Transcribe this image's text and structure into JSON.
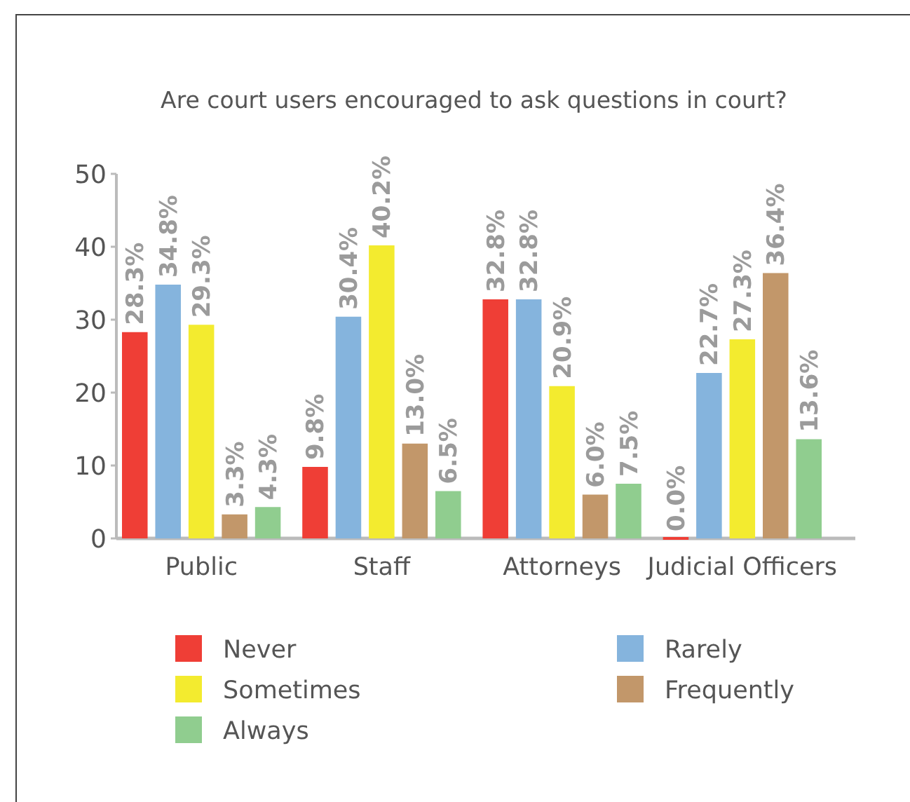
{
  "chart_data": {
    "type": "bar",
    "title": "Are court users encouraged to ask questions in court?",
    "categories": [
      "Public",
      "Staff",
      "Attorneys",
      "Judicial Officers"
    ],
    "series": [
      {
        "name": "Never",
        "color": "#ef3e36",
        "values": [
          28.3,
          9.8,
          32.8,
          0.0
        ],
        "value_labels": [
          "28.3%",
          "9.8%",
          "32.8%",
          "0.0%"
        ]
      },
      {
        "name": "Rarely",
        "color": "#85b4dd",
        "values": [
          34.8,
          30.4,
          32.8,
          22.7
        ],
        "value_labels": [
          "34.8%",
          "30.4%",
          "32.8%",
          "22.7%"
        ]
      },
      {
        "name": "Sometimes",
        "color": "#f3eb2f",
        "values": [
          29.3,
          40.2,
          20.9,
          27.3
        ],
        "value_labels": [
          "29.3%",
          "40.2%",
          "20.9%",
          "27.3%"
        ]
      },
      {
        "name": "Frequently",
        "color": "#c2976a",
        "values": [
          3.3,
          13.0,
          6.0,
          36.4
        ],
        "value_labels": [
          "3.3%",
          "13.0%",
          "6.0%",
          "36.4%"
        ]
      },
      {
        "name": "Always",
        "color": "#90cd8f",
        "values": [
          4.3,
          6.5,
          7.5,
          13.6
        ],
        "value_labels": [
          "4.3%",
          "6.5%",
          "7.5%",
          "13.6%"
        ]
      }
    ],
    "ylim": [
      0,
      50
    ],
    "yticks": [
      0,
      10,
      20,
      30,
      40,
      50
    ],
    "legend": "bottom"
  }
}
